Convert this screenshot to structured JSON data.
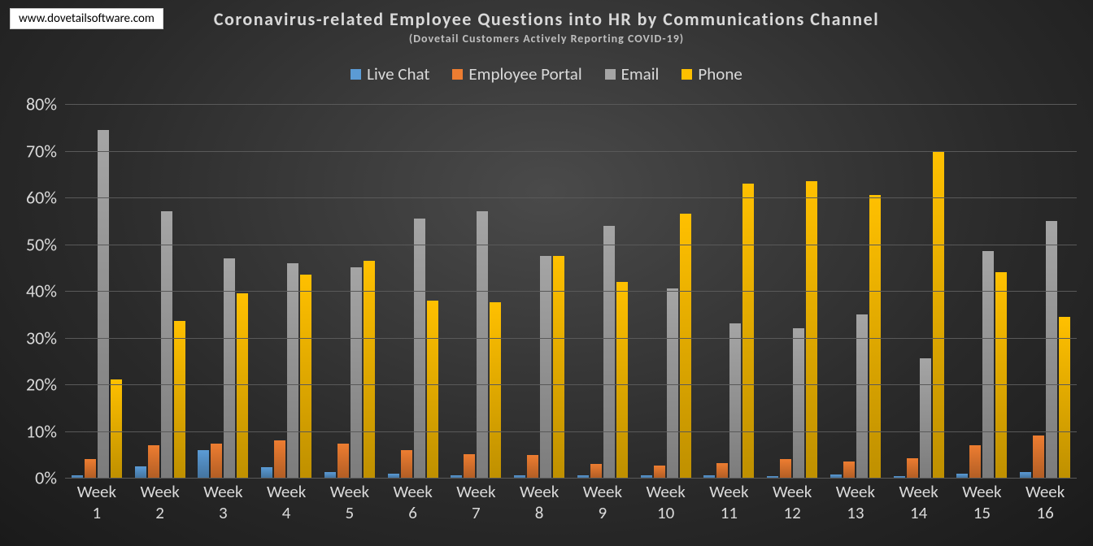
{
  "url_box": "www.dovetailsoftware.com",
  "title": "Coronavirus-related Employee Questions into HR by Communications Channel",
  "subtitle": "(Dovetail Customers Actively Reporting COVID-19)",
  "chart": {
    "type": "bar",
    "background": "radial-gradient #4a4a4a -> #1a1a1a",
    "text_color": "#d9d9d9",
    "grid_color": "#595959",
    "title_fontsize": 22,
    "subtitle_fontsize": 14,
    "axis_fontsize": 22,
    "legend_fontsize": 21,
    "ylim": [
      0,
      80
    ],
    "ytick_step": 10,
    "ytick_format": "percent",
    "series": [
      {
        "name": "Live Chat",
        "color": "#5b9bd5"
      },
      {
        "name": "Employee Portal",
        "color": "#ed7d31"
      },
      {
        "name": "Email",
        "color": "#a5a5a5"
      },
      {
        "name": "Phone",
        "color": "#ffc000"
      }
    ],
    "categories": [
      "Week 1",
      "Week 2",
      "Week 3",
      "Week 4",
      "Week 5",
      "Week 6",
      "Week 7",
      "Week 8",
      "Week 9",
      "Week 10",
      "Week 11",
      "Week 12",
      "Week 13",
      "Week 14",
      "Week 15",
      "Week 16"
    ],
    "data": {
      "Live Chat": [
        0.5,
        2.5,
        6.0,
        2.3,
        1.2,
        0.8,
        0.5,
        0.5,
        0.5,
        0.5,
        0.5,
        0.3,
        0.7,
        0.3,
        0.8,
        1.3
      ],
      "Employee Portal": [
        4.0,
        7.0,
        7.3,
        8.0,
        7.3,
        6.0,
        5.0,
        4.8,
        3.0,
        2.6,
        3.2,
        4.0,
        3.5,
        4.2,
        7.0,
        9.0
      ],
      "Email": [
        74.5,
        57.0,
        47.0,
        46.0,
        45.0,
        55.5,
        57.0,
        47.5,
        54.0,
        40.5,
        33.0,
        32.0,
        35.0,
        25.5,
        48.5,
        55.0
      ],
      "Phone": [
        21.0,
        33.5,
        39.5,
        43.5,
        46.5,
        38.0,
        37.5,
        47.5,
        42.0,
        56.5,
        63.0,
        63.5,
        60.5,
        70.0,
        44.0,
        34.5
      ]
    }
  }
}
